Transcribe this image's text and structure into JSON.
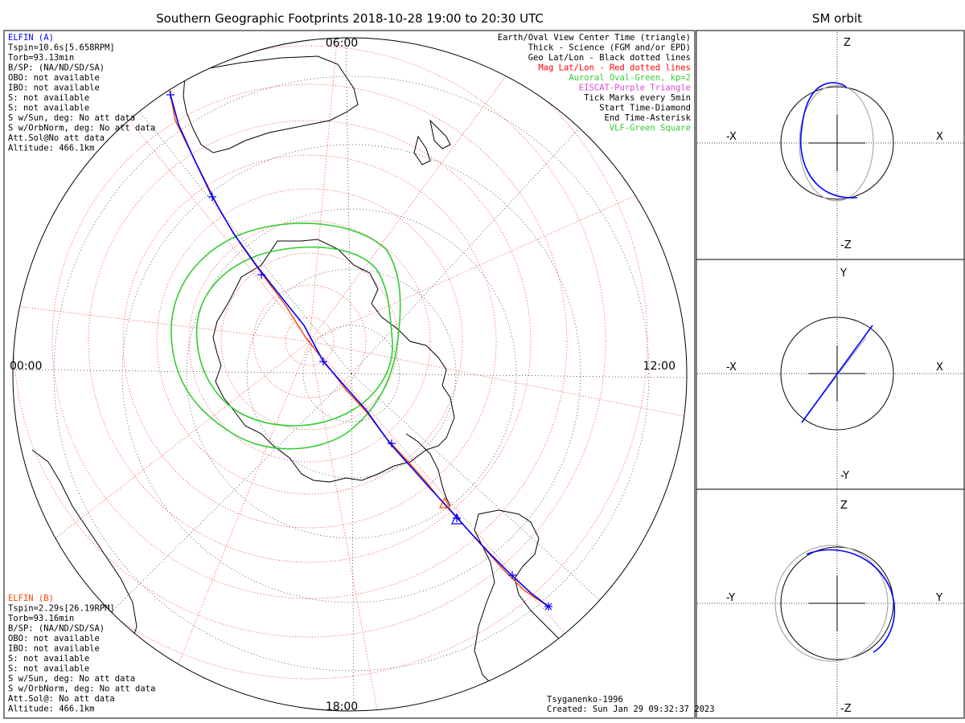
{
  "title": "Southern Geographic Footprints 2018-10-28 19:00 to 20:30 UTC",
  "sm_title": "SM orbit",
  "map": {
    "mlt_labels": {
      "top": "06:00",
      "left": "00:00",
      "right": "12:00",
      "bottom": "18:00"
    },
    "credit": "Tsyganenko-1996",
    "created": "Created: Sun Jan 29 09:32:37 2023"
  },
  "elfin_a": {
    "name": "ELFIN (A)",
    "lines": [
      "Tspin=10.6s[5.658RPM]",
      "Torb=93.13min",
      "B/SP: (NA/ND/SD/SA)",
      "OBO: not available",
      "IBO: not available",
      "S: not available",
      "S: not available",
      "S w/Sun, deg: No att data",
      "S w/OrbNorm, deg: No att data",
      "Att.Sol@No att data",
      "Altitude: 466.1km"
    ]
  },
  "elfin_b": {
    "name": "ELFIN (B)",
    "lines": [
      "Tspin=2.29s[26.19RPM]",
      "Torb=93.16min",
      "B/SP: (NA/ND/SD/SA)",
      "OBO: not available",
      "IBO: not available",
      "S: not available",
      "S: not available",
      "S w/Sun, deg: No att data",
      "S w/OrbNorm, deg: No att data",
      "Att.Sol@: No att data",
      "Altitude: 466.1km"
    ]
  },
  "legend": [
    {
      "text": "Earth/Oval View Center Time (triangle)",
      "color": "#000000"
    },
    {
      "text": "Thick - Science (FGM and/or EPD)",
      "color": "#000000"
    },
    {
      "text": "Geo Lat/Lon - Black dotted lines",
      "color": "#000000"
    },
    {
      "text": "Mag Lat/Lon - Red dotted lines",
      "color": "#ff0000"
    },
    {
      "text": "Auroral Oval-Green, kp=2",
      "color": "#33cc33"
    },
    {
      "text": "EISCAT-Purple Triangle",
      "color": "#dd44dd"
    },
    {
      "text": "Tick Marks every 5min",
      "color": "#000000"
    },
    {
      "text": "Start Time-Diamond",
      "color": "#000000"
    },
    {
      "text": "End Time-Asterisk",
      "color": "#000000"
    },
    {
      "text": "VLF-Green Square",
      "color": "#33cc33"
    }
  ],
  "sm_panels": [
    {
      "top_label": "Z",
      "bottom_label": "-Z",
      "left_label": "-X",
      "right_label": "X"
    },
    {
      "top_label": "Y",
      "bottom_label": "-Y",
      "left_label": "-X",
      "right_label": "X"
    },
    {
      "top_label": "Z",
      "bottom_label": "-Z",
      "left_label": "-Y",
      "right_label": "Y"
    }
  ],
  "colors": {
    "elfin_a": "#0000ff",
    "elfin_b": "#ff4400",
    "auroral_oval": "#33cc33",
    "mag_grid": "#ff0000",
    "geo_grid": "#000000",
    "orbit_gray": "#aaaaaa"
  }
}
